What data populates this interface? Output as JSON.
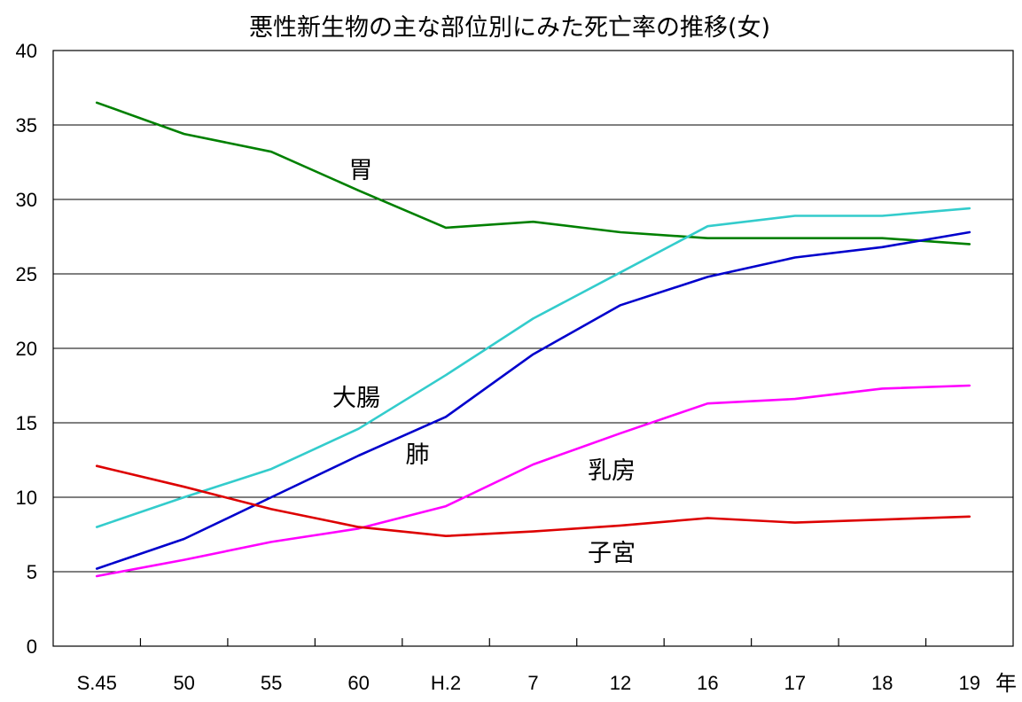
{
  "chart_data": {
    "type": "line",
    "title": "悪性新生物の主な部位別にみた死亡率の推移(女)",
    "x_unit": "年",
    "categories": [
      "S.45",
      "50",
      "55",
      "60",
      "H.2",
      "7",
      "12",
      "16",
      "17",
      "18",
      "19"
    ],
    "ylim": [
      0,
      40
    ],
    "yticks": [
      0,
      5,
      10,
      15,
      20,
      25,
      30,
      35,
      40
    ],
    "grid": true,
    "legend": "none",
    "series": [
      {
        "name": "胃",
        "color": "#008000",
        "values": [
          36.5,
          34.4,
          33.2,
          30.6,
          28.1,
          28.5,
          27.8,
          27.4,
          27.4,
          27.4,
          27.0
        ]
      },
      {
        "name": "大腸",
        "color": "#33CCCC",
        "values": [
          8.0,
          10.0,
          11.9,
          14.6,
          18.2,
          22.0,
          25.1,
          28.2,
          28.9,
          28.9,
          29.4
        ]
      },
      {
        "name": "肺",
        "color": "#0000CC",
        "values": [
          5.2,
          7.2,
          10.0,
          12.8,
          15.4,
          19.6,
          22.9,
          24.8,
          26.1,
          26.8,
          27.8
        ]
      },
      {
        "name": "乳房",
        "color": "#FF00FF",
        "values": [
          4.7,
          5.8,
          7.0,
          7.9,
          9.4,
          12.2,
          14.3,
          16.3,
          16.6,
          17.3,
          17.5
        ]
      },
      {
        "name": "子宮",
        "color": "#DD0000",
        "values": [
          12.1,
          10.7,
          9.2,
          8.0,
          7.4,
          7.7,
          8.1,
          8.6,
          8.3,
          8.5,
          8.7
        ]
      }
    ]
  }
}
